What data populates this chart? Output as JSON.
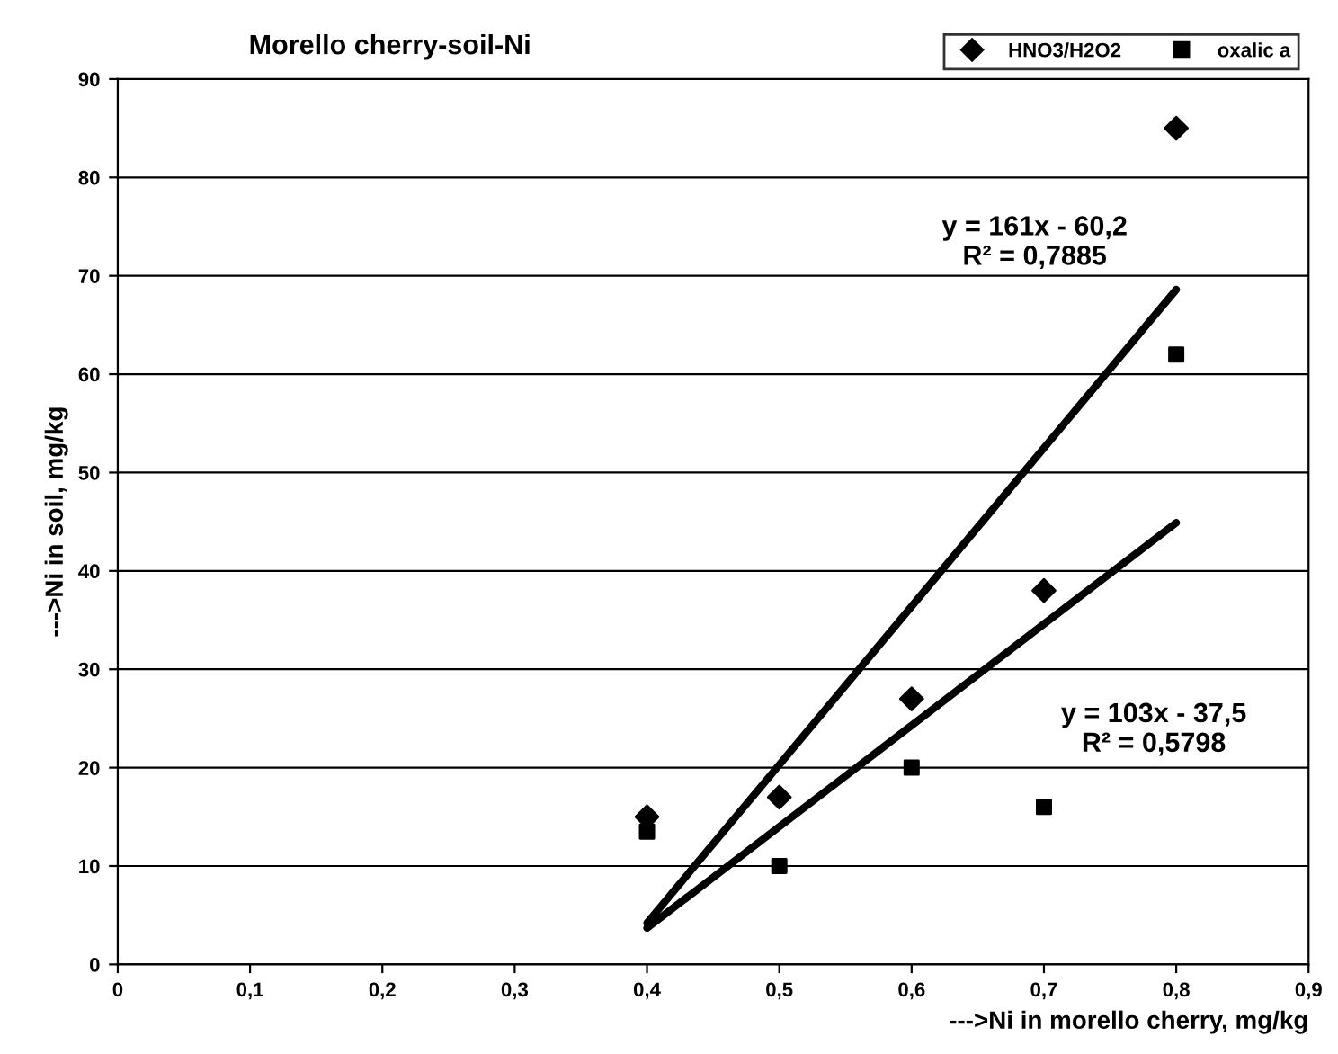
{
  "chart_data": {
    "type": "scatter",
    "title": "Morello cherry-soil-Ni",
    "xlabel": "--->Ni in morello cherry, mg/kg",
    "ylabel": "--->Ni in soil, mg/kg",
    "x": [
      0.4,
      0.5,
      0.6,
      0.7,
      0.8
    ],
    "series": [
      {
        "name": "HNO3/H2O2",
        "color": "#000000",
        "marker": "diamond",
        "values": [
          15,
          17,
          27,
          38,
          85
        ]
      },
      {
        "name": "oxalic a",
        "color": "#000000",
        "marker": "square",
        "values": [
          13.5,
          10,
          20,
          16,
          62
        ]
      },
      {
        "type": "line",
        "color": "#000000",
        "marker": "none",
        "line_style": "solid",
        "values": [
          4.2,
          20.3,
          36.4,
          52.5,
          68.6
        ]
      },
      {
        "type": "line",
        "color": "#000000",
        "marker": "none",
        "line_style": "solid",
        "values": [
          3.7,
          14,
          24.3,
          34.6,
          44.9
        ]
      }
    ],
    "xlim": [
      0,
      0.9
    ],
    "xticks": [
      0,
      {
        "value": 0.1,
        "label": "0,1"
      },
      {
        "value": 0.2,
        "label": "0,2"
      },
      {
        "value": 0.3,
        "label": "0,3"
      },
      {
        "value": 0.4,
        "label": "0,4"
      },
      {
        "value": 0.5,
        "label": "0,5"
      },
      {
        "value": 0.6,
        "label": "0,6"
      },
      {
        "value": 0.7,
        "label": "0,7"
      },
      {
        "value": 0.8,
        "label": "0,8"
      },
      {
        "value": 0.9,
        "label": "0,9"
      }
    ],
    "ylim": [
      0,
      90
    ],
    "yticks": [
      0,
      10,
      20,
      30,
      40,
      50,
      60,
      70,
      80,
      90
    ],
    "grid": "y",
    "legend": "top right",
    "annotations": [
      "y = 161x - 60,2\nR² = 0,7885",
      "y = 103x - 37,5\nR² = 0,5798"
    ]
  }
}
